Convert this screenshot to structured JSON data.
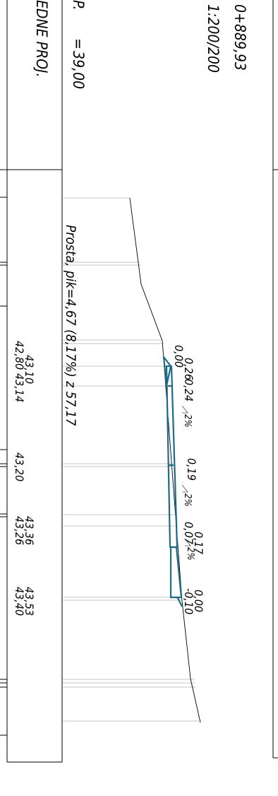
{
  "header": {
    "chainage": "0+889,93",
    "scale": "1:200/200",
    "proj_label": "EDNE PROJ.",
    "datum_prefix": "P.",
    "datum_equals": "=",
    "datum_value": "39,00"
  },
  "slope_note": "Prosta, pik=4,67 (8,17%) z 57,17",
  "elevations": [
    "42,80",
    "43,10",
    "43,14",
    "43,20",
    "43,26",
    "43,36",
    "43,40",
    "43,53"
  ],
  "offsets": [
    "0,00",
    "0,26",
    "0,24",
    "0,19",
    "0,07",
    "0,17",
    "-0,10",
    "0,00"
  ],
  "grades": [
    "2%",
    "2%",
    "2%"
  ],
  "colors": {
    "structure": "#1f6b86",
    "ink": "#000000",
    "grid": "#8a8a8a"
  }
}
